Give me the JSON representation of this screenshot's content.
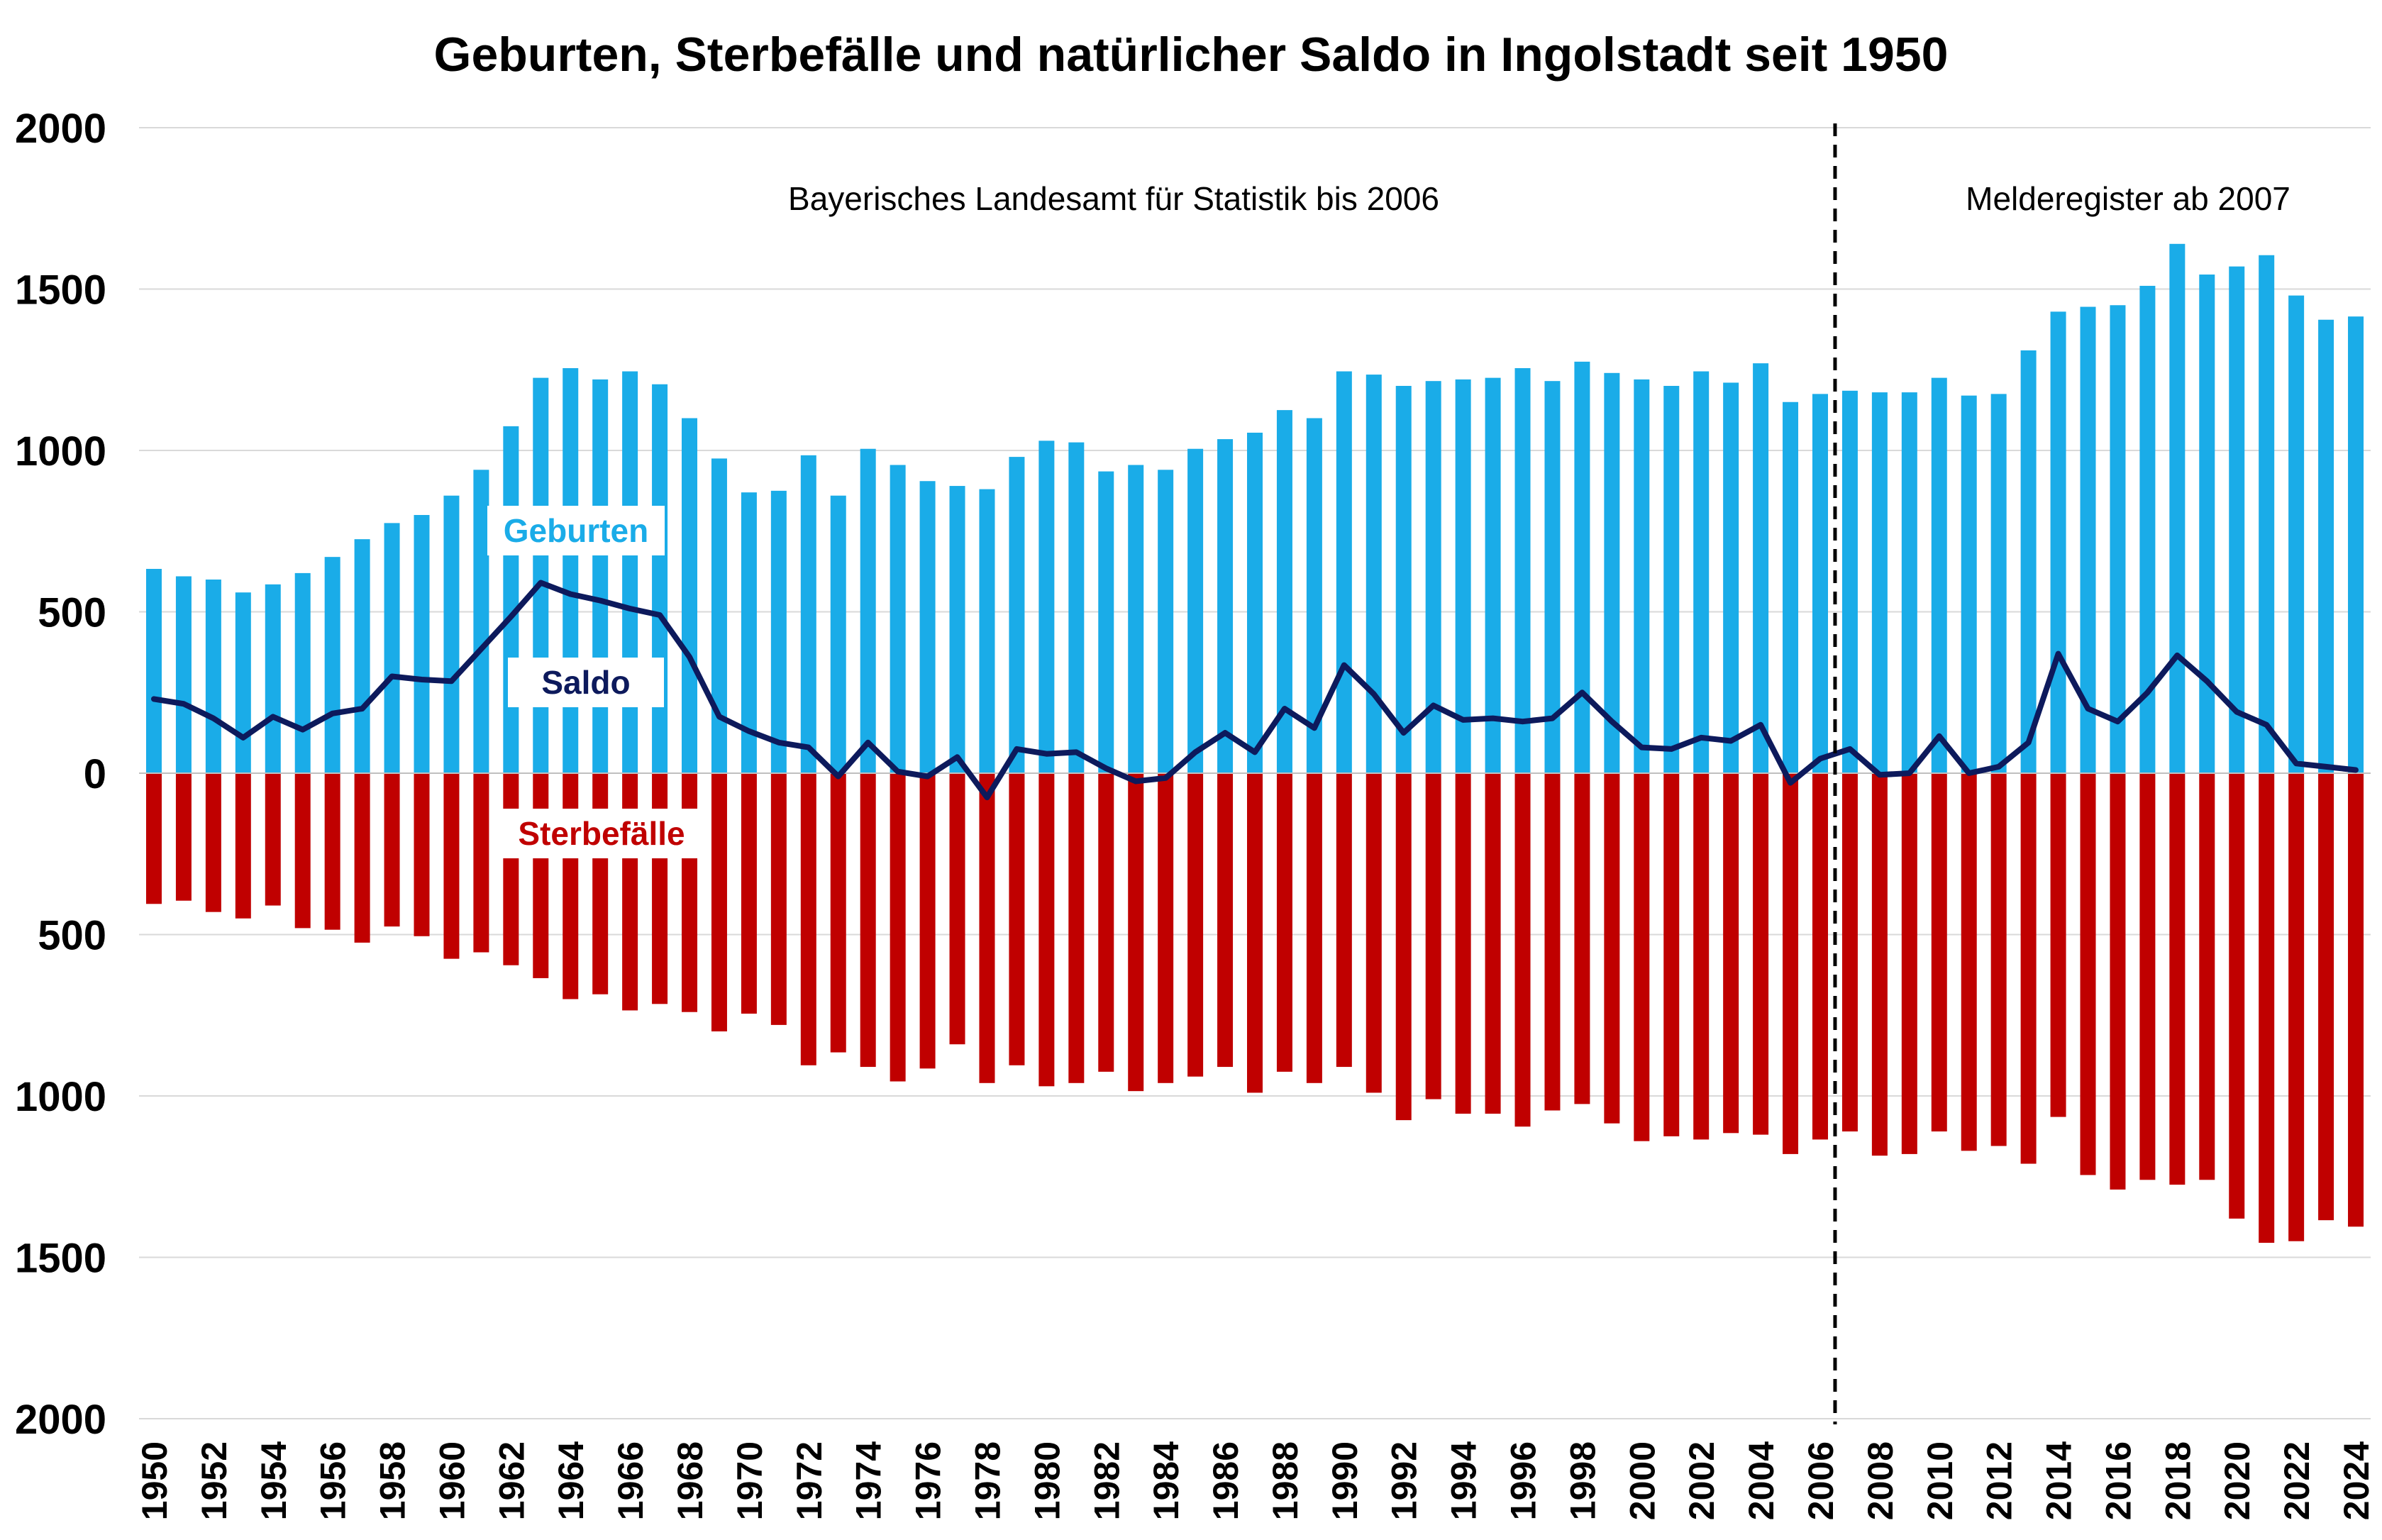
{
  "chart_data": {
    "type": "bar",
    "title": "Geburten, Sterbefälle und natürlicher Saldo in Ingolstadt seit 1950",
    "ylim": [
      -2000,
      2000
    ],
    "yticks": [
      2000,
      1500,
      1000,
      500,
      0,
      -500,
      -1000,
      -1500,
      -2000
    ],
    "ytick_labels": [
      "2000",
      "1500",
      "1000",
      "500",
      "0",
      "500",
      "1000",
      "1500",
      "2000"
    ],
    "grid": true,
    "years": [
      1950,
      1951,
      1952,
      1953,
      1954,
      1955,
      1956,
      1957,
      1958,
      1959,
      1960,
      1961,
      1962,
      1963,
      1964,
      1965,
      1966,
      1967,
      1968,
      1969,
      1970,
      1971,
      1972,
      1973,
      1974,
      1975,
      1976,
      1977,
      1978,
      1979,
      1980,
      1981,
      1982,
      1983,
      1984,
      1985,
      1986,
      1987,
      1988,
      1989,
      1990,
      1991,
      1992,
      1993,
      1994,
      1995,
      1996,
      1997,
      1998,
      1999,
      2000,
      2001,
      2002,
      2003,
      2004,
      2005,
      2006,
      2007,
      2008,
      2009,
      2010,
      2011,
      2012,
      2013,
      2014,
      2015,
      2016,
      2017,
      2018,
      2019,
      2020,
      2021,
      2022,
      2023,
      2024
    ],
    "series": [
      {
        "name": "Geburten",
        "type": "bar",
        "color": "#1aace8",
        "values": [
          633,
          610,
          600,
          560,
          585,
          620,
          670,
          725,
          775,
          800,
          860,
          940,
          1075,
          1225,
          1255,
          1220,
          1245,
          1205,
          1100,
          975,
          870,
          875,
          985,
          860,
          1005,
          955,
          905,
          890,
          880,
          980,
          1030,
          1025,
          935,
          955,
          940,
          1005,
          1035,
          1055,
          1125,
          1100,
          1245,
          1235,
          1200,
          1215,
          1220,
          1225,
          1255,
          1215,
          1275,
          1240,
          1220,
          1200,
          1245,
          1210,
          1270,
          1150,
          1175,
          1185,
          1180,
          1180,
          1225,
          1170,
          1175,
          1310,
          1430,
          1445,
          1450,
          1510,
          1640,
          1545,
          1570,
          1605,
          1480,
          1405,
          1415
        ]
      },
      {
        "name": "Sterbefälle",
        "type": "bar",
        "color": "#c00000",
        "values": [
          -405,
          -395,
          -430,
          -450,
          -410,
          -480,
          -485,
          -525,
          -475,
          -505,
          -575,
          -555,
          -595,
          -635,
          -700,
          -685,
          -735,
          -715,
          -740,
          -800,
          -745,
          -780,
          -905,
          -865,
          -910,
          -955,
          -915,
          -840,
          -960,
          -905,
          -970,
          -960,
          -925,
          -985,
          -960,
          -940,
          -910,
          -990,
          -925,
          -960,
          -910,
          -990,
          -1075,
          -1010,
          -1055,
          -1055,
          -1095,
          -1045,
          -1025,
          -1085,
          -1140,
          -1125,
          -1135,
          -1115,
          -1120,
          -1180,
          -1135,
          -1110,
          -1185,
          -1180,
          -1110,
          -1170,
          -1155,
          -1210,
          -1065,
          -1245,
          -1290,
          -1260,
          -1275,
          -1260,
          -1380,
          -1455,
          -1450,
          -1385,
          -1405
        ]
      },
      {
        "name": "Saldo",
        "type": "line",
        "color": "#0d1a5c",
        "values": [
          230,
          215,
          170,
          110,
          175,
          135,
          185,
          200,
          300,
          290,
          285,
          385,
          485,
          590,
          555,
          535,
          510,
          490,
          360,
          175,
          130,
          95,
          80,
          -10,
          95,
          5,
          -10,
          50,
          -75,
          75,
          60,
          65,
          15,
          -25,
          -15,
          65,
          125,
          65,
          200,
          140,
          335,
          245,
          125,
          210,
          165,
          170,
          160,
          170,
          250,
          160,
          80,
          75,
          110,
          100,
          150,
          -30,
          45,
          75,
          -5,
          0,
          115,
          0,
          20,
          95,
          370,
          200,
          160,
          250,
          365,
          285,
          190,
          150,
          30,
          20,
          10
        ]
      }
    ],
    "annotations": {
      "left_source": "Bayerisches Landesamt für Statistik bis 2006",
      "right_source": "Melderegister ab 2007",
      "divider_between": [
        2006,
        2007
      ],
      "label_geburten": "Geburten",
      "label_saldo": "Saldo",
      "label_sterbefaelle": "Sterbefälle"
    }
  }
}
